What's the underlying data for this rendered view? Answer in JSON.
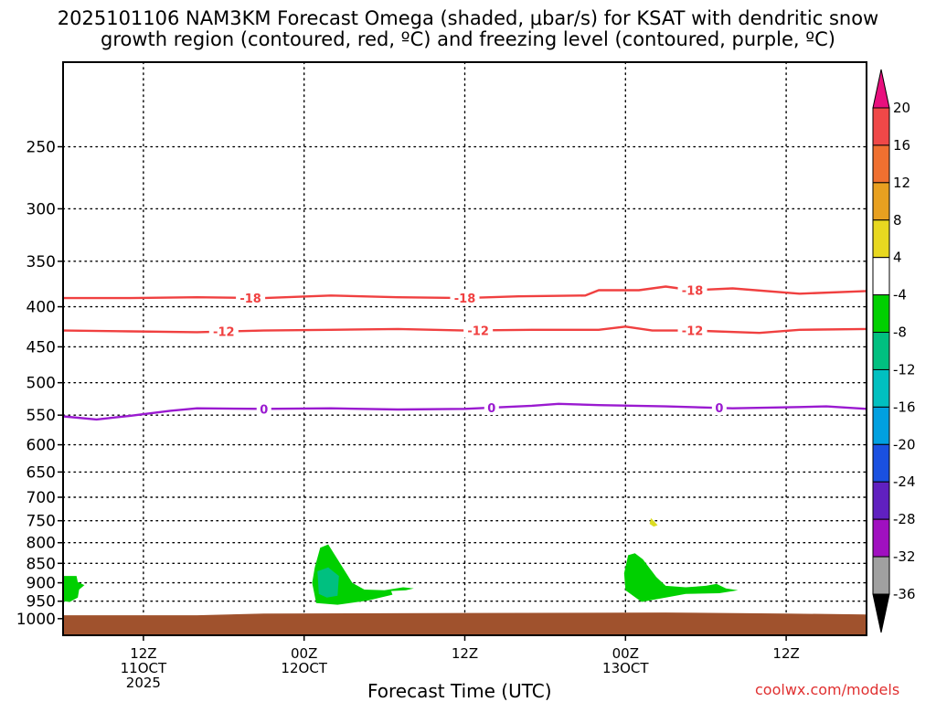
{
  "title_line1": "2025101106 NAM3KM Forecast Omega (shaded, μbar/s) for KSAT with dendritic snow",
  "title_line2": "growth region (contoured, red, ºC) and freezing level (contoured, purple, ºC)",
  "x_axis_label": "Forecast Time (UTC)",
  "credit": "coolwx.com/models",
  "chart_data": {
    "type": "heatmap",
    "x_domain_hours": [
      0,
      60
    ],
    "y_scale": "log-pressure",
    "y_domain_hPa": [
      1050,
      195
    ],
    "y_ticks": [
      250,
      300,
      350,
      400,
      450,
      500,
      550,
      600,
      650,
      700,
      750,
      800,
      850,
      900,
      950,
      1000
    ],
    "x_ticks": [
      {
        "hour": 6,
        "lines": [
          "12Z",
          "11OCT",
          "2025"
        ]
      },
      {
        "hour": 18,
        "lines": [
          "00Z",
          "12OCT"
        ]
      },
      {
        "hour": 30,
        "lines": [
          "12Z"
        ]
      },
      {
        "hour": 42,
        "lines": [
          "00Z",
          "13OCT"
        ]
      },
      {
        "hour": 54,
        "lines": [
          "12Z"
        ]
      }
    ],
    "grid": true,
    "ground_pressure_hPa": [
      [
        0,
        990
      ],
      [
        10,
        990
      ],
      [
        15,
        985
      ],
      [
        45,
        982
      ],
      [
        54,
        985
      ],
      [
        60,
        988
      ]
    ],
    "contours": [
      {
        "label": "-18",
        "color": "#f04040",
        "points": [
          [
            0,
            390
          ],
          [
            5,
            390
          ],
          [
            10,
            389
          ],
          [
            15,
            390
          ],
          [
            20,
            387
          ],
          [
            25,
            389
          ],
          [
            30,
            390
          ],
          [
            34,
            388
          ],
          [
            39,
            387
          ],
          [
            40,
            381
          ],
          [
            43,
            381
          ],
          [
            45,
            377
          ],
          [
            47,
            381
          ],
          [
            50,
            379
          ],
          [
            55,
            385
          ],
          [
            60,
            382
          ]
        ],
        "label_hours": [
          14,
          30,
          47
        ]
      },
      {
        "label": "-12",
        "color": "#f04040",
        "points": [
          [
            0,
            429
          ],
          [
            5,
            430
          ],
          [
            10,
            431
          ],
          [
            15,
            429
          ],
          [
            20,
            428
          ],
          [
            25,
            427
          ],
          [
            30,
            429
          ],
          [
            35,
            428
          ],
          [
            40,
            428
          ],
          [
            42,
            424
          ],
          [
            44,
            429
          ],
          [
            47,
            429
          ],
          [
            52,
            432
          ],
          [
            55,
            428
          ],
          [
            60,
            427
          ]
        ],
        "label_hours": [
          12,
          31,
          47
        ]
      },
      {
        "label": "0",
        "color": "#9a1ad0",
        "points": [
          [
            0,
            552
          ],
          [
            2.5,
            557
          ],
          [
            5,
            551
          ],
          [
            8,
            543
          ],
          [
            10,
            539
          ],
          [
            15,
            540
          ],
          [
            20,
            539
          ],
          [
            25,
            541
          ],
          [
            30,
            540
          ],
          [
            35,
            535
          ],
          [
            37,
            532
          ],
          [
            40,
            534
          ],
          [
            45,
            536
          ],
          [
            50,
            539
          ],
          [
            55,
            537
          ],
          [
            57,
            536
          ],
          [
            60,
            540
          ]
        ],
        "label_hours": [
          15,
          32,
          49
        ]
      }
    ],
    "shaded_regions": [
      {
        "color": "#00d000",
        "points": [
          [
            0,
            882
          ],
          [
            1,
            882
          ],
          [
            1.1,
            898
          ],
          [
            1.6,
            906
          ],
          [
            1.2,
            918
          ],
          [
            1.1,
            940
          ],
          [
            0.5,
            952
          ],
          [
            0,
            950
          ]
        ]
      },
      {
        "color": "#00d000",
        "points": [
          [
            18.9,
            955
          ],
          [
            18.6,
            900
          ],
          [
            18.8,
            860
          ],
          [
            19.2,
            812
          ],
          [
            19.8,
            804
          ],
          [
            20.5,
            840
          ],
          [
            21.6,
            900
          ],
          [
            22.5,
            918
          ],
          [
            24,
            920
          ],
          [
            25.4,
            912
          ],
          [
            26.2,
            915
          ],
          [
            25.6,
            920
          ],
          [
            24.5,
            922
          ],
          [
            24.6,
            932
          ],
          [
            22.8,
            948
          ],
          [
            20.5,
            960
          ]
        ]
      },
      {
        "color": "#00c080",
        "points": [
          [
            19,
            870
          ],
          [
            19.8,
            860
          ],
          [
            20.6,
            882
          ],
          [
            20.5,
            935
          ],
          [
            19.7,
            940
          ],
          [
            19.1,
            930
          ]
        ]
      },
      {
        "color": "#00d000",
        "points": [
          [
            42,
            920
          ],
          [
            41.9,
            875
          ],
          [
            42.2,
            830
          ],
          [
            42.7,
            825
          ],
          [
            43.3,
            840
          ],
          [
            44.3,
            885
          ],
          [
            45,
            908
          ],
          [
            46.5,
            912
          ],
          [
            48,
            908
          ],
          [
            48.8,
            903
          ],
          [
            49.5,
            915
          ],
          [
            50.4,
            920
          ],
          [
            49,
            928
          ],
          [
            46.5,
            930
          ],
          [
            45,
            940
          ],
          [
            43.2,
            952
          ]
        ]
      },
      {
        "color": "#dcdc20",
        "points": [
          [
            43.9,
            744
          ],
          [
            44.1,
            750
          ],
          [
            44.4,
            760
          ],
          [
            44.1,
            763
          ],
          [
            43.8,
            757
          ]
        ]
      }
    ],
    "colorbar": {
      "unit": "μbar/s",
      "segments": [
        {
          "label": "20",
          "color": "#e8107e"
        },
        {
          "label": "16",
          "color": "#f04848"
        },
        {
          "label": "12",
          "color": "#f07030"
        },
        {
          "label": "8",
          "color": "#e8a020"
        },
        {
          "label": "4",
          "color": "#e8d820"
        },
        {
          "label": "-4",
          "color": "#ffffff"
        },
        {
          "label": "-8",
          "color": "#00d000"
        },
        {
          "label": "-12",
          "color": "#00c080"
        },
        {
          "label": "-16",
          "color": "#00c0c0"
        },
        {
          "label": "-20",
          "color": "#00a0e0"
        },
        {
          "label": "-24",
          "color": "#1a50e0"
        },
        {
          "label": "-28",
          "color": "#6020c0"
        },
        {
          "label": "-32",
          "color": "#a010c0"
        },
        {
          "label": "-36",
          "color": "#a0a0a0"
        },
        {
          "label": "",
          "color": "#000000"
        }
      ]
    }
  }
}
